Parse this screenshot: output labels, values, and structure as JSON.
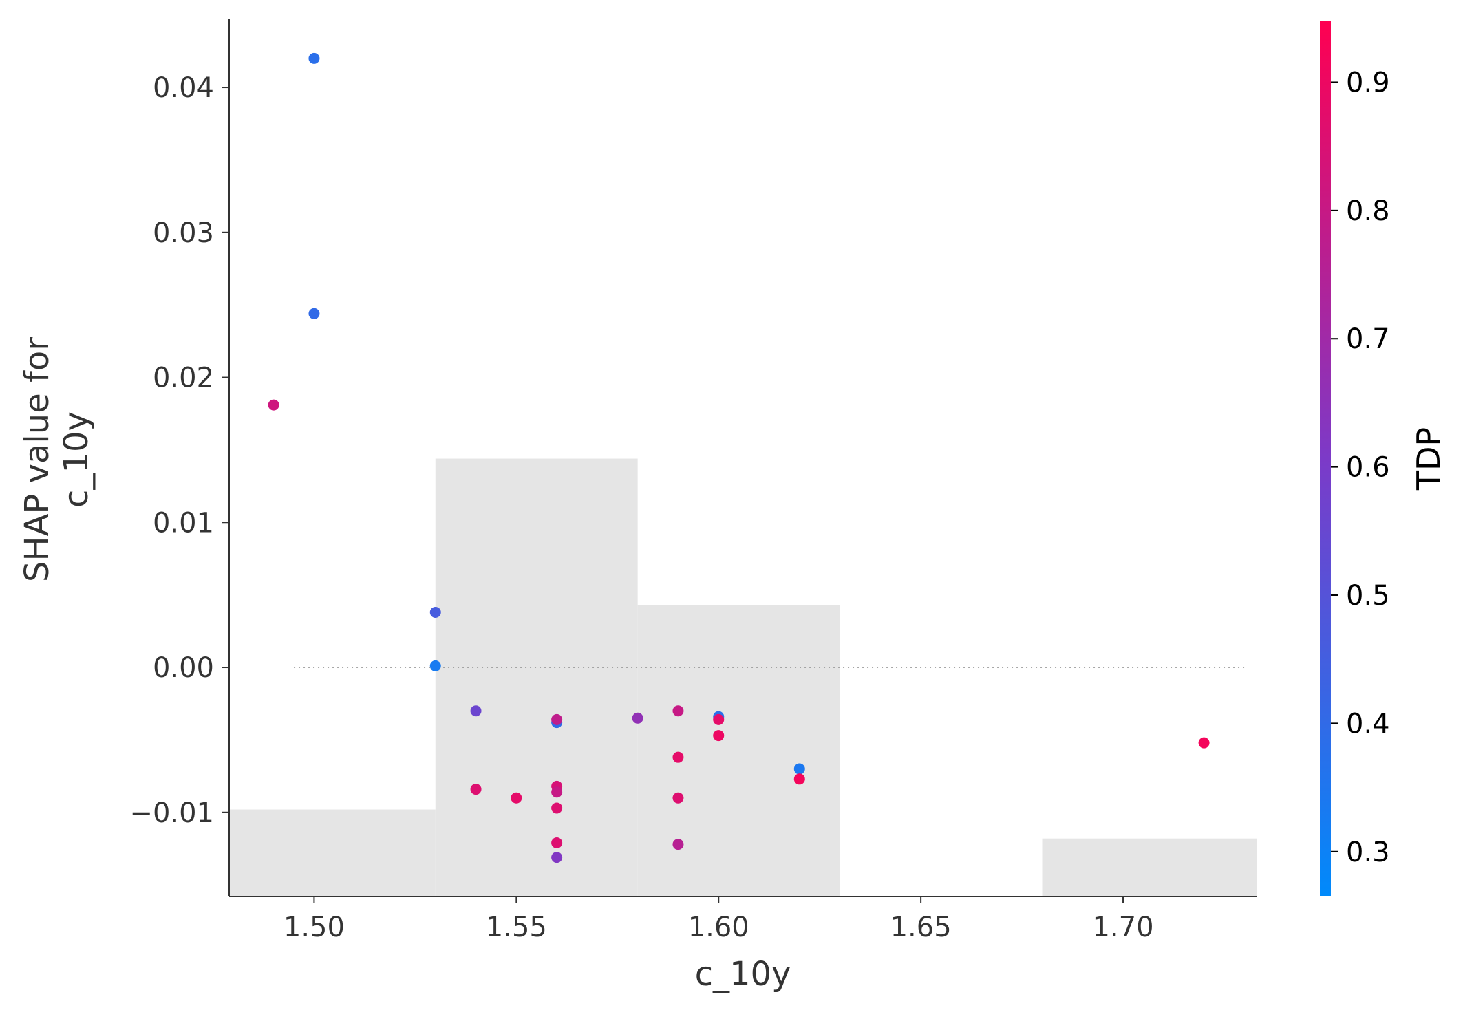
{
  "chart_data": {
    "type": "scatter",
    "title": "",
    "xlabel": "c_10y",
    "ylabel": [
      "SHAP value for",
      "c_10y"
    ],
    "xlim": [
      1.479,
      1.733
    ],
    "ylim": [
      -0.0158,
      0.0447
    ],
    "x_ticks": [
      1.5,
      1.55,
      1.6,
      1.65,
      1.7
    ],
    "x_tick_labels": [
      "1.50",
      "1.55",
      "1.60",
      "1.65",
      "1.70"
    ],
    "y_ticks": [
      -0.01,
      0.0,
      0.01,
      0.02,
      0.03,
      0.04
    ],
    "y_tick_labels": [
      "−0.01",
      "0.00",
      "0.01",
      "0.02",
      "0.03",
      "0.04"
    ],
    "zero_line": {
      "y": 0,
      "style": "dotted",
      "color": "#999999"
    },
    "histogram": {
      "color": "#e5e5e5",
      "bins": [
        {
          "x0": 1.479,
          "x1": 1.53,
          "top": -0.0098
        },
        {
          "x0": 1.53,
          "x1": 1.58,
          "top": 0.0144
        },
        {
          "x0": 1.58,
          "x1": 1.63,
          "top": 0.0043
        },
        {
          "x0": 1.68,
          "x1": 1.733,
          "top": -0.0118
        }
      ]
    },
    "colorbar": {
      "label": "TDP",
      "range": [
        0.265,
        0.948
      ],
      "ticks": [
        0.3,
        0.4,
        0.5,
        0.6,
        0.7,
        0.8,
        0.9
      ],
      "tick_labels": [
        "0.3",
        "0.4",
        "0.5",
        "0.6",
        "0.7",
        "0.8",
        "0.9"
      ],
      "color_low": "#008afb",
      "color_mid": "#7c3ac8",
      "color_high": "#ff0051"
    },
    "points": [
      {
        "x": 1.5,
        "y": 0.042,
        "c": 0.38
      },
      {
        "x": 1.5,
        "y": 0.0244,
        "c": 0.4
      },
      {
        "x": 1.49,
        "y": 0.0181,
        "c": 0.82
      },
      {
        "x": 1.53,
        "y": 0.0038,
        "c": 0.46
      },
      {
        "x": 1.53,
        "y": 0.0001,
        "c": 0.33
      },
      {
        "x": 1.54,
        "y": -0.003,
        "c": 0.56
      },
      {
        "x": 1.54,
        "y": -0.0084,
        "c": 0.86
      },
      {
        "x": 1.55,
        "y": -0.009,
        "c": 0.88
      },
      {
        "x": 1.56,
        "y": -0.0038,
        "c": 0.4
      },
      {
        "x": 1.56,
        "y": -0.0036,
        "c": 0.78
      },
      {
        "x": 1.56,
        "y": -0.0082,
        "c": 0.84
      },
      {
        "x": 1.56,
        "y": -0.0086,
        "c": 0.8
      },
      {
        "x": 1.56,
        "y": -0.0097,
        "c": 0.86
      },
      {
        "x": 1.56,
        "y": -0.0121,
        "c": 0.86
      },
      {
        "x": 1.56,
        "y": -0.0131,
        "c": 0.62
      },
      {
        "x": 1.58,
        "y": -0.0035,
        "c": 0.66
      },
      {
        "x": 1.59,
        "y": -0.003,
        "c": 0.8
      },
      {
        "x": 1.59,
        "y": -0.0062,
        "c": 0.88
      },
      {
        "x": 1.59,
        "y": -0.009,
        "c": 0.86
      },
      {
        "x": 1.59,
        "y": -0.0122,
        "c": 0.76
      },
      {
        "x": 1.6,
        "y": -0.0034,
        "c": 0.38
      },
      {
        "x": 1.6,
        "y": -0.0036,
        "c": 0.88
      },
      {
        "x": 1.6,
        "y": -0.0047,
        "c": 0.9
      },
      {
        "x": 1.62,
        "y": -0.007,
        "c": 0.34
      },
      {
        "x": 1.62,
        "y": -0.0077,
        "c": 0.92
      },
      {
        "x": 1.72,
        "y": -0.0052,
        "c": 0.92
      }
    ]
  }
}
